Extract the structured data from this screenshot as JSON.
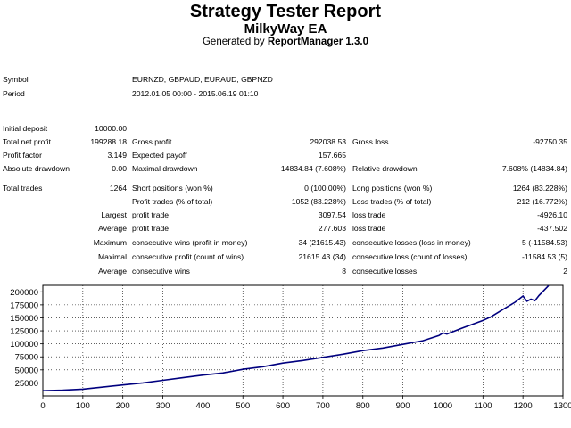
{
  "report": {
    "title": "Strategy Tester Report",
    "subtitle": "MilkyWay EA",
    "generated_prefix": "Generated by ",
    "generated_tool": "ReportManager 1.3.0"
  },
  "info": {
    "symbol_label": "Symbol",
    "symbol_value": "EURNZD, GBPAUD, EURAUD, GBPNZD",
    "period_label": "Period",
    "period_value": "2012.01.05 00:00 - 2015.06.19 01:10"
  },
  "stats": {
    "initial_deposit_label": "Initial deposit",
    "initial_deposit": "10000.00",
    "total_net_profit_label": "Total net profit",
    "total_net_profit": "199288.18",
    "gross_profit_label": "Gross profit",
    "gross_profit": "292038.53",
    "gross_loss_label": "Gross loss",
    "gross_loss": "-92750.35",
    "profit_factor_label": "Profit factor",
    "profit_factor": "3.149",
    "expected_payoff_label": "Expected payoff",
    "expected_payoff": "157.665",
    "absolute_drawdown_label": "Absolute drawdown",
    "absolute_drawdown": "0.00",
    "maximal_drawdown_label": "Maximal drawdown",
    "maximal_drawdown": "14834.84 (7.608%)",
    "relative_drawdown_label": "Relative drawdown",
    "relative_drawdown": "7.608% (14834.84)",
    "total_trades_label": "Total trades",
    "total_trades": "1264",
    "short_positions_label": "Short positions (won %)",
    "short_positions": "0 (100.00%)",
    "long_positions_label": "Long positions (won %)",
    "long_positions": "1264 (83.228%)",
    "profit_trades_label": "Profit trades (% of total)",
    "profit_trades": "1052 (83.228%)",
    "loss_trades_label": "Loss trades (% of total)",
    "loss_trades": "212 (16.772%)",
    "largest_label": "Largest",
    "largest_profit_label": "profit trade",
    "largest_profit": "3097.54",
    "largest_loss_label": "loss trade",
    "largest_loss": "-4926.10",
    "average_label": "Average",
    "average_profit_label": "profit trade",
    "average_profit": "277.603",
    "average_loss_label": "loss trade",
    "average_loss": "-437.502",
    "maximum_label": "Maximum",
    "max_consec_wins_label": "consecutive wins (profit in money)",
    "max_consec_wins": "34 (21615.43)",
    "max_consec_losses_label": "consecutive losses (loss in money)",
    "max_consec_losses": "5 (-11584.53)",
    "maximal_label": "Maximal",
    "maximal_consec_profit_label": "consecutive profit (count of wins)",
    "maximal_consec_profit": "21615.43 (34)",
    "maximal_consec_loss_label": "consecutive loss (count of losses)",
    "maximal_consec_loss": "-11584.53 (5)",
    "average2_label": "Average",
    "avg_consec_wins_label": "consecutive wins",
    "avg_consec_wins": "8",
    "avg_consec_losses_label": "consecutive losses",
    "avg_consec_losses": "2"
  },
  "chart_data": {
    "type": "line",
    "title": "",
    "xlabel": "",
    "ylabel": "",
    "xlim": [
      0,
      1300
    ],
    "ylim": [
      0,
      212500
    ],
    "x_ticks": [
      0,
      100,
      200,
      300,
      400,
      500,
      600,
      700,
      800,
      900,
      1000,
      1100,
      1200,
      1300
    ],
    "y_ticks": [
      25000,
      50000,
      75000,
      100000,
      125000,
      150000,
      175000,
      200000
    ],
    "grid": true,
    "line_color": "#00007f",
    "series": [
      {
        "x": [
          0,
          50,
          100,
          150,
          200,
          250,
          300,
          350,
          400,
          450,
          500,
          550,
          600,
          650,
          700,
          750,
          800,
          850,
          900,
          950,
          990,
          1000,
          1010,
          1050,
          1100,
          1120,
          1150,
          1180,
          1200,
          1210,
          1220,
          1230,
          1240,
          1264
        ],
        "y": [
          10000,
          11000,
          13000,
          17000,
          21000,
          25000,
          30000,
          35000,
          40000,
          44000,
          51000,
          56000,
          63000,
          68000,
          74000,
          80000,
          87000,
          92000,
          99000,
          106000,
          116000,
          121000,
          119000,
          131000,
          145000,
          152000,
          166000,
          180000,
          192000,
          182000,
          186000,
          183000,
          193000,
          212000
        ]
      }
    ]
  }
}
